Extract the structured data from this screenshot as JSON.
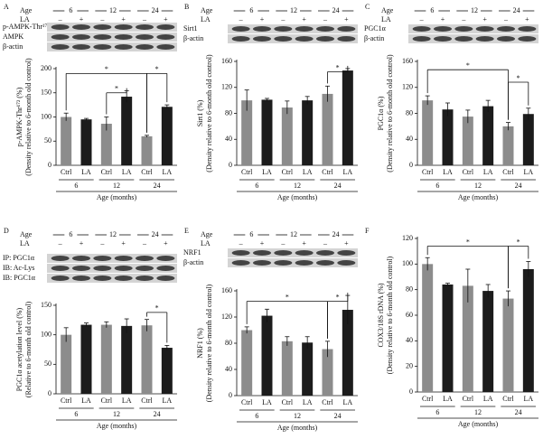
{
  "chart_data": [
    {
      "type": "bar",
      "panel": "A",
      "ylabel": "p-AMPK-Thr¹⁷² (%)",
      "ylabel2": "(Density relative to 6-month old control)",
      "ylim": [
        0,
        200
      ],
      "yticks": [
        0,
        50,
        100,
        150,
        200
      ],
      "categories": [
        "6",
        "12",
        "24"
      ],
      "xlabel": "Age (months)",
      "series": [
        {
          "name": "Ctrl",
          "color": "#8c8c8c",
          "values": [
            100,
            86,
            60
          ],
          "errors": [
            8,
            14,
            2
          ]
        },
        {
          "name": "LA",
          "color": "#1c1c1c",
          "values": [
            95,
            142,
            121
          ],
          "errors": [
            2,
            12,
            4
          ]
        }
      ],
      "annotations": [
        "*",
        "*",
        "*"
      ],
      "blot": {
        "age_label": "Age",
        "la_label": "LA",
        "la_signs": [
          "–",
          "+",
          "–",
          "+",
          "–",
          "+"
        ],
        "rows": [
          "p-AMPK-Thr¹⁷²",
          "AMPK",
          "β-actin"
        ]
      }
    },
    {
      "type": "bar",
      "panel": "B",
      "ylabel": "Sirt1 (%)",
      "ylabel2": "(Density relative to 6-month old control)",
      "ylim": [
        0,
        160
      ],
      "yticks": [
        0,
        40,
        80,
        120,
        160
      ],
      "categories": [
        "6",
        "12",
        "24"
      ],
      "xlabel": "Age (months)",
      "series": [
        {
          "name": "Ctrl",
          "color": "#8c8c8c",
          "values": [
            100,
            89,
            110
          ],
          "errors": [
            16,
            10,
            12
          ]
        },
        {
          "name": "LA",
          "color": "#1c1c1c",
          "values": [
            101,
            100,
            146
          ],
          "errors": [
            2,
            6,
            3
          ]
        }
      ],
      "annotations": [
        "*"
      ],
      "blot": {
        "age_label": "Age",
        "la_label": "LA",
        "la_signs": [
          "–",
          "+",
          "–",
          "+",
          "–",
          "+"
        ],
        "rows": [
          "Sirt1",
          "β-actin"
        ]
      }
    },
    {
      "type": "bar",
      "panel": "C",
      "ylabel": "PGC1α (%)",
      "ylabel2": "(Density relative to 6-month old control)",
      "ylim": [
        0,
        160
      ],
      "yticks": [
        0,
        40,
        80,
        120,
        160
      ],
      "categories": [
        "6",
        "12",
        "24"
      ],
      "xlabel": "Age (months)",
      "series": [
        {
          "name": "Ctrl",
          "color": "#8c8c8c",
          "values": [
            100,
            75,
            60
          ],
          "errors": [
            7,
            10,
            6
          ]
        },
        {
          "name": "LA",
          "color": "#1c1c1c",
          "values": [
            86,
            91,
            79
          ],
          "errors": [
            10,
            9,
            9
          ]
        }
      ],
      "annotations": [
        "*",
        "*"
      ],
      "blot": {
        "age_label": "Age",
        "la_label": "LA",
        "la_signs": [
          "–",
          "+",
          "–",
          "+",
          "–",
          "+"
        ],
        "rows": [
          "PGC1α",
          "β-actin"
        ]
      }
    },
    {
      "type": "bar",
      "panel": "D",
      "ylabel": "PGC1α acetylation level (%)",
      "ylabel2": "(Relative to 6-month old control)",
      "ylim": [
        0,
        150
      ],
      "yticks": [
        0,
        50,
        100,
        150
      ],
      "categories": [
        "6",
        "12",
        "24"
      ],
      "xlabel": "Age (months)",
      "series": [
        {
          "name": "Ctrl",
          "color": "#8c8c8c",
          "values": [
            100,
            117,
            116
          ],
          "errors": [
            12,
            5,
            10
          ]
        },
        {
          "name": "LA",
          "color": "#1c1c1c",
          "values": [
            117,
            115,
            78
          ],
          "errors": [
            3,
            12,
            4
          ]
        }
      ],
      "annotations": [
        "*"
      ],
      "blot": {
        "age_label": "Age",
        "la_label": "LA",
        "la_signs": [
          "–",
          "+",
          "–",
          "+",
          "–",
          "+"
        ],
        "rows": [
          "IP: PGC1α",
          "IB: Ac-Lys",
          "IB: PGC1α"
        ]
      }
    },
    {
      "type": "bar",
      "panel": "E",
      "ylabel": "NRF1 (%)",
      "ylabel2": "(Density relative to 6-month old control)",
      "ylim": [
        0,
        160
      ],
      "yticks": [
        0,
        40,
        80,
        120,
        160
      ],
      "categories": [
        "6",
        "12",
        "24"
      ],
      "xlabel": "Age (months)",
      "series": [
        {
          "name": "Ctrl",
          "color": "#8c8c8c",
          "values": [
            100,
            83,
            71
          ],
          "errors": [
            5,
            7,
            12
          ]
        },
        {
          "name": "LA",
          "color": "#1c1c1c",
          "values": [
            122,
            81,
            131
          ],
          "errors": [
            10,
            9,
            22
          ]
        }
      ],
      "annotations": [
        "*",
        "*"
      ],
      "blot": {
        "age_label": "Age",
        "la_label": "LA",
        "la_signs": [
          "–",
          "+",
          "–",
          "+",
          "–",
          "+"
        ],
        "rows": [
          "NRF1",
          "β-actin"
        ]
      }
    },
    {
      "type": "bar",
      "panel": "F",
      "ylabel": "COX3/18S rDNA (%)",
      "ylabel2": "(Density relative to 6-month old control)",
      "ylim": [
        0,
        120
      ],
      "yticks": [
        0,
        20,
        40,
        60,
        80,
        100,
        120
      ],
      "categories": [
        "6",
        "12",
        "24"
      ],
      "xlabel": "Age (months)",
      "series": [
        {
          "name": "Ctrl",
          "color": "#8c8c8c",
          "values": [
            100,
            83,
            73
          ],
          "errors": [
            5,
            13,
            6
          ]
        },
        {
          "name": "LA",
          "color": "#1c1c1c",
          "values": [
            84,
            79,
            96
          ],
          "errors": [
            1,
            5,
            6
          ]
        }
      ],
      "annotations": [
        "*",
        "*"
      ]
    }
  ]
}
